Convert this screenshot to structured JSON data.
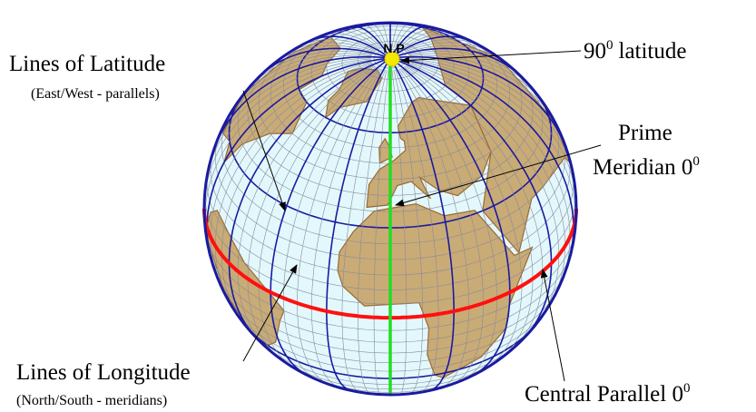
{
  "labels": {
    "north_pole": "N.P",
    "pole_latitude": {
      "text": "90",
      "sup": "0",
      "suffix": "latitude"
    },
    "latitude": {
      "title": "Lines of Latitude",
      "subtitle": "(East/West - parallels)"
    },
    "prime_meridian": {
      "line1": "Prime",
      "line2": "Meridian 0",
      "sup": "0"
    },
    "longitude": {
      "title": "Lines of Longitude",
      "subtitle": "(North/South - meridians)"
    },
    "central_parallel": {
      "text": "Central Parallel 0",
      "sup": "0"
    }
  }
}
